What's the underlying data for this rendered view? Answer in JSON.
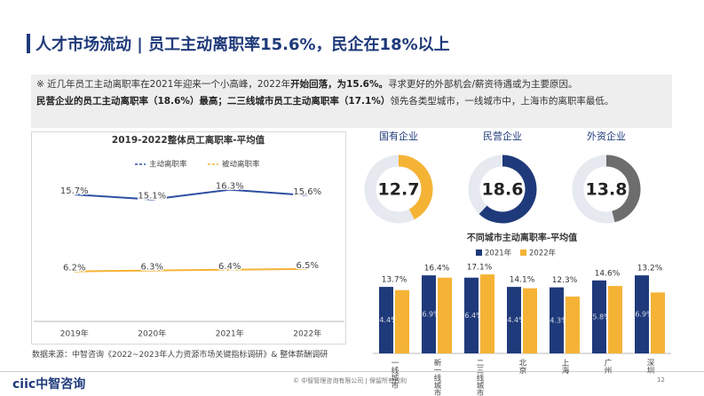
{
  "header": {
    "title": "人才市场流动 | 员工主动离职率15.6%，民企在18%以上"
  },
  "notes": [
    [
      "※ 近几年员工主动离职率在2021年迎来一个小高峰，2022年",
      "开始回落，为15.6%。",
      "寻求更好的外部机会/薪资待遇或为主要原因。"
    ],
    [
      "民营企业的员工主动离职率（18.6%）最高；二三线城市员工主动离职率（17.1%）",
      "领先各类型城市，一线城市中，上海市的离职率最低。"
    ]
  ],
  "chart_data": [
    {
      "type": "line",
      "title": "2019-2022整体员工离职率-平均值",
      "categories": [
        "2019年",
        "2020年",
        "2021年",
        "2022年"
      ],
      "series": [
        {
          "name": "主动离职率",
          "color": "#2e4fa3",
          "values": [
            15.7,
            15.1,
            16.3,
            15.6
          ],
          "value_labels": [
            "15.7%",
            "15.1%",
            "16.3%",
            "15.6%"
          ]
        },
        {
          "name": "被动离职率",
          "color": "#f5b335",
          "values": [
            6.2,
            6.3,
            6.4,
            6.5
          ],
          "value_labels": [
            "6.2%",
            "6.3%",
            "6.4%",
            "6.5%"
          ]
        }
      ],
      "ylim": [
        0,
        20
      ]
    },
    {
      "type": "donut",
      "categories": [
        "国有企业",
        "民营企业",
        "外资企业"
      ],
      "values": [
        12.7,
        18.6,
        13.8
      ],
      "colors": [
        "#f5b335",
        "#1f3a7a",
        "#6d6d6d"
      ],
      "ylim": [
        0,
        30
      ]
    },
    {
      "type": "bar",
      "title": "不同城市主动离职率-平均值",
      "categories": [
        "一线城市",
        "新一线城市",
        "二三线城市",
        "北京",
        "上海",
        "广州",
        "深圳"
      ],
      "series": [
        {
          "name": "2021年",
          "color": "#1f3a7a",
          "values": [
            14.4,
            16.9,
            16.4,
            14.4,
            14.3,
            15.8,
            16.9
          ],
          "value_labels": [
            "14.4%",
            "16.9%",
            "16.4%",
            "14.4%",
            "14.3%",
            "15.8%",
            "16.9%"
          ]
        },
        {
          "name": "2022年",
          "color": "#f5b335",
          "values": [
            13.7,
            16.4,
            17.1,
            14.1,
            12.3,
            14.6,
            13.2
          ],
          "value_labels": [
            "13.7%",
            "16.4%",
            "17.1%",
            "14.1%",
            "12.3%",
            "14.6%",
            "13.2%"
          ]
        }
      ],
      "ylim": [
        0,
        20
      ]
    }
  ],
  "footer": {
    "source": "数据来源：中智咨询《2022~2023年人力资源市场关键指标调研》& 整体薪酬调研",
    "logo": "ciic中智咨询",
    "copyright": "© 中智管理咨询有限公司 | 保留所有权利",
    "page": "12"
  }
}
